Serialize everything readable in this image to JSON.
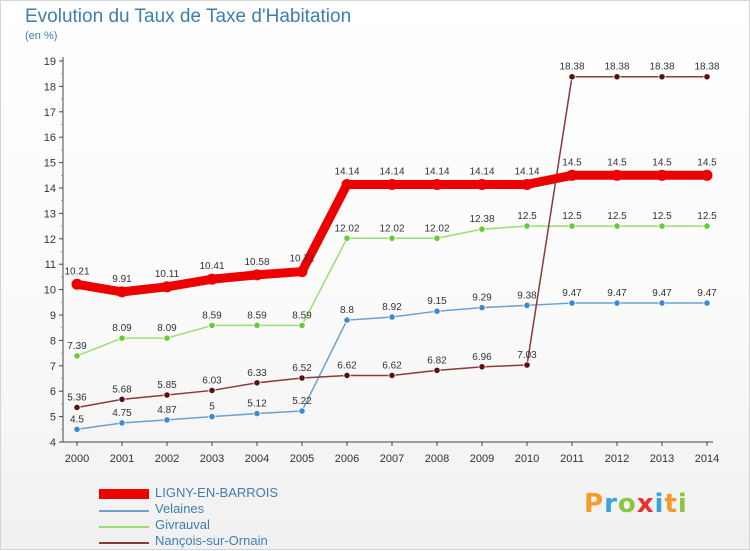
{
  "header": {
    "title": "Evolution du Taux de Taxe d'Habitation",
    "unit_label": "(en %)"
  },
  "logo": {
    "letters": [
      "P",
      "r",
      "o",
      "x",
      "i",
      "t",
      "i"
    ],
    "colors": [
      "#f59b2a",
      "#3aa3d9",
      "#8cc63f",
      "#e8312f",
      "#3aa3d9",
      "#f59b2a",
      "#8cc63f"
    ]
  },
  "chart_data": {
    "type": "line",
    "x": [
      "2000",
      "2001",
      "2002",
      "2003",
      "2004",
      "2005",
      "2006",
      "2007",
      "2008",
      "2009",
      "2010",
      "2011",
      "2012",
      "2013",
      "2014"
    ],
    "ylim": [
      4,
      19
    ],
    "yticks": [
      "4",
      "5",
      "6",
      "7",
      "8",
      "9",
      "10",
      "11",
      "12",
      "13",
      "14",
      "15",
      "16",
      "17",
      "18",
      "19"
    ],
    "grid": false,
    "legend_position": "bottom-left",
    "series": [
      {
        "name": "LIGNY-EN-BARROIS",
        "color": "#ee0000",
        "marker_color": "#ee0000",
        "emphasis": true,
        "values": [
          10.21,
          9.91,
          10.11,
          10.41,
          10.58,
          10.71,
          14.14,
          14.14,
          14.14,
          14.14,
          14.14,
          14.5,
          14.5,
          14.5,
          14.5
        ],
        "labels": [
          "10.21",
          "9.91",
          "10.11",
          "10.41",
          "10.58",
          "10.71",
          "14.14",
          "14.14",
          "14.14",
          "14.14",
          "14.14",
          "14.5",
          "14.5",
          "14.5",
          "14.5"
        ]
      },
      {
        "name": "Velaines",
        "color": "#6fa0cc",
        "marker_color": "#3a8ad4",
        "emphasis": false,
        "values": [
          4.5,
          4.75,
          4.87,
          5,
          5.12,
          5.22,
          8.8,
          8.92,
          9.15,
          9.29,
          9.38,
          9.47,
          9.47,
          9.47,
          9.47
        ],
        "labels": [
          "4.5",
          "4.75",
          "4.87",
          "5",
          "5.12",
          "5.22",
          "8.8",
          "8.92",
          "9.15",
          "9.29",
          "9.38",
          "9.47",
          "9.47",
          "9.47",
          "9.47"
        ]
      },
      {
        "name": "Givrauval",
        "color": "#99e070",
        "marker_color": "#66cc33",
        "emphasis": false,
        "values": [
          7.39,
          8.09,
          8.09,
          8.59,
          8.59,
          8.59,
          12.02,
          12.02,
          12.02,
          12.38,
          12.5,
          12.5,
          12.5,
          12.5,
          12.5
        ],
        "labels": [
          "7.39",
          "8.09",
          "8.09",
          "8.59",
          "8.59",
          "8.59",
          "12.02",
          "12.02",
          "12.02",
          "12.38",
          "12.5",
          "12.5",
          "12.5",
          "12.5",
          "12.5"
        ]
      },
      {
        "name": "Nançois-sur-Ornain",
        "color": "#8b3a3a",
        "marker_color": "#5a1010",
        "emphasis": false,
        "values": [
          5.36,
          5.68,
          5.85,
          6.03,
          6.33,
          6.52,
          6.62,
          6.62,
          6.82,
          6.96,
          7.03,
          18.38,
          18.38,
          18.38,
          18.38
        ],
        "labels": [
          "5.36",
          "5.68",
          "5.85",
          "6.03",
          "6.33",
          "6.52",
          "6.62",
          "6.62",
          "6.82",
          "6.96",
          "7.03",
          "18.38",
          "18.38",
          "18.38",
          "18.38"
        ]
      }
    ]
  }
}
